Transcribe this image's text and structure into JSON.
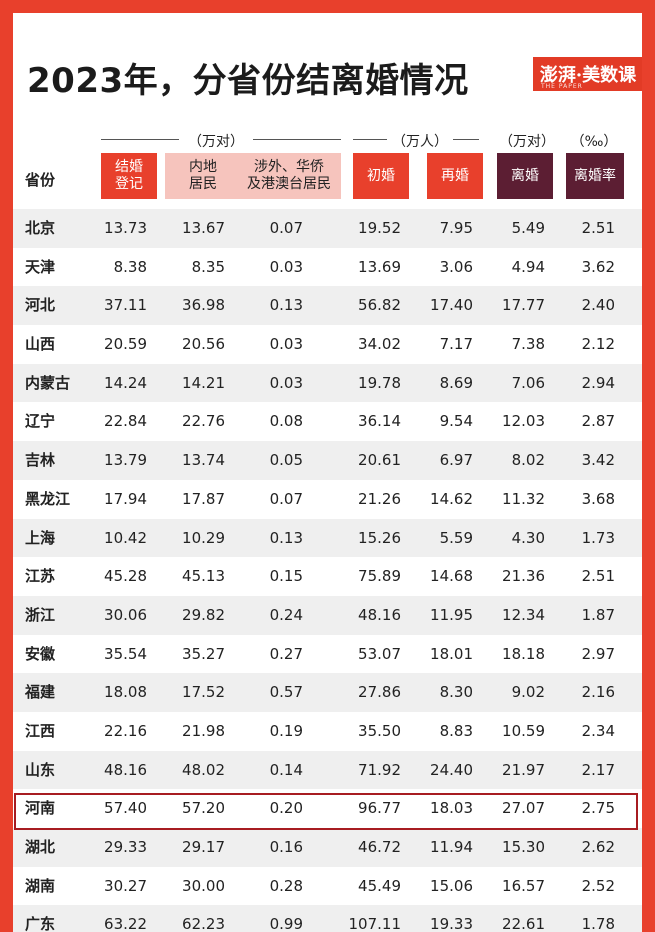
{
  "title": "2023年，分省份结离婚情况",
  "logo": {
    "text": "澎湃·美数课",
    "sub": "THE PAPER"
  },
  "units": {
    "wan_dui_1": "（万对）",
    "wan_ren": "（万人）",
    "wan_dui_2": "（万对）",
    "permille": "（‰）"
  },
  "headers": {
    "province": "省份",
    "marriage_reg_line1": "结婚",
    "marriage_reg_line2": "登记",
    "mainland_line1": "内地",
    "mainland_line2": "居民",
    "foreign_line1": "涉外、华侨",
    "foreign_line2": "及港澳台居民",
    "first_marriage": "初婚",
    "remarriage": "再婚",
    "divorce": "离婚",
    "divorce_rate": "离婚率"
  },
  "colors": {
    "accent_red": "#e8402c",
    "pink": "#f6c4bd",
    "maroon": "#5c1e33",
    "highlight_border": "#a71c21"
  },
  "highlight_row": "河南",
  "rows": [
    {
      "province": "北京",
      "marriage": "13.73",
      "mainland": "13.67",
      "foreign": "0.07",
      "first": "19.52",
      "re": "7.95",
      "divorce": "5.49",
      "rate": "2.51"
    },
    {
      "province": "天津",
      "marriage": "8.38",
      "mainland": "8.35",
      "foreign": "0.03",
      "first": "13.69",
      "re": "3.06",
      "divorce": "4.94",
      "rate": "3.62"
    },
    {
      "province": "河北",
      "marriage": "37.11",
      "mainland": "36.98",
      "foreign": "0.13",
      "first": "56.82",
      "re": "17.40",
      "divorce": "17.77",
      "rate": "2.40"
    },
    {
      "province": "山西",
      "marriage": "20.59",
      "mainland": "20.56",
      "foreign": "0.03",
      "first": "34.02",
      "re": "7.17",
      "divorce": "7.38",
      "rate": "2.12"
    },
    {
      "province": "内蒙古",
      "marriage": "14.24",
      "mainland": "14.21",
      "foreign": "0.03",
      "first": "19.78",
      "re": "8.69",
      "divorce": "7.06",
      "rate": "2.94"
    },
    {
      "province": "辽宁",
      "marriage": "22.84",
      "mainland": "22.76",
      "foreign": "0.08",
      "first": "36.14",
      "re": "9.54",
      "divorce": "12.03",
      "rate": "2.87"
    },
    {
      "province": "吉林",
      "marriage": "13.79",
      "mainland": "13.74",
      "foreign": "0.05",
      "first": "20.61",
      "re": "6.97",
      "divorce": "8.02",
      "rate": "3.42"
    },
    {
      "province": "黑龙江",
      "marriage": "17.94",
      "mainland": "17.87",
      "foreign": "0.07",
      "first": "21.26",
      "re": "14.62",
      "divorce": "11.32",
      "rate": "3.68"
    },
    {
      "province": "上海",
      "marriage": "10.42",
      "mainland": "10.29",
      "foreign": "0.13",
      "first": "15.26",
      "re": "5.59",
      "divorce": "4.30",
      "rate": "1.73"
    },
    {
      "province": "江苏",
      "marriage": "45.28",
      "mainland": "45.13",
      "foreign": "0.15",
      "first": "75.89",
      "re": "14.68",
      "divorce": "21.36",
      "rate": "2.51"
    },
    {
      "province": "浙江",
      "marriage": "30.06",
      "mainland": "29.82",
      "foreign": "0.24",
      "first": "48.16",
      "re": "11.95",
      "divorce": "12.34",
      "rate": "1.87"
    },
    {
      "province": "安徽",
      "marriage": "35.54",
      "mainland": "35.27",
      "foreign": "0.27",
      "first": "53.07",
      "re": "18.01",
      "divorce": "18.18",
      "rate": "2.97"
    },
    {
      "province": "福建",
      "marriage": "18.08",
      "mainland": "17.52",
      "foreign": "0.57",
      "first": "27.86",
      "re": "8.30",
      "divorce": "9.02",
      "rate": "2.16"
    },
    {
      "province": "江西",
      "marriage": "22.16",
      "mainland": "21.98",
      "foreign": "0.19",
      "first": "35.50",
      "re": "8.83",
      "divorce": "10.59",
      "rate": "2.34"
    },
    {
      "province": "山东",
      "marriage": "48.16",
      "mainland": "48.02",
      "foreign": "0.14",
      "first": "71.92",
      "re": "24.40",
      "divorce": "21.97",
      "rate": "2.17"
    },
    {
      "province": "河南",
      "marriage": "57.40",
      "mainland": "57.20",
      "foreign": "0.20",
      "first": "96.77",
      "re": "18.03",
      "divorce": "27.07",
      "rate": "2.75"
    },
    {
      "province": "湖北",
      "marriage": "29.33",
      "mainland": "29.17",
      "foreign": "0.16",
      "first": "46.72",
      "re": "11.94",
      "divorce": "15.30",
      "rate": "2.62"
    },
    {
      "province": "湖南",
      "marriage": "30.27",
      "mainland": "30.00",
      "foreign": "0.28",
      "first": "45.49",
      "re": "15.06",
      "divorce": "16.57",
      "rate": "2.52"
    },
    {
      "province": "广东",
      "marriage": "63.22",
      "mainland": "62.23",
      "foreign": "0.99",
      "first": "107.11",
      "re": "19.33",
      "divorce": "22.61",
      "rate": "1.78"
    }
  ]
}
